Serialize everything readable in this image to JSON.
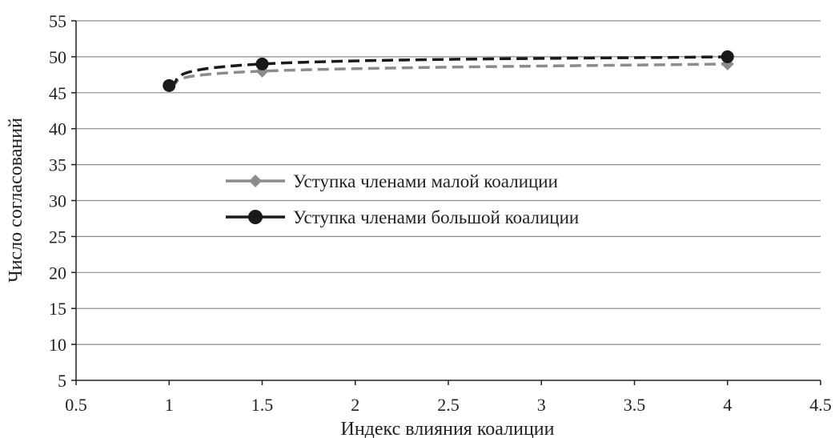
{
  "chart_data": {
    "type": "line",
    "xlabel": "Индекс влияния коалиции",
    "ylabel": "Число согласований",
    "xlim": [
      0.5,
      4.5
    ],
    "ylim": [
      5,
      55
    ],
    "xticks": [
      0.5,
      1,
      1.5,
      2,
      2.5,
      3,
      3.5,
      4,
      4.5
    ],
    "yticks": [
      5,
      10,
      15,
      20,
      25,
      30,
      35,
      40,
      45,
      50,
      55
    ],
    "grid": "horizontal",
    "legend_position": "center-left",
    "series": [
      {
        "name": "Уступка членами малой коалиции",
        "x": [
          1,
          1.5,
          4
        ],
        "values": [
          46,
          48,
          49
        ],
        "color": "#8c8c8c",
        "marker": "diamond",
        "line_style": "dashed"
      },
      {
        "name": "Уступка членами большой коалиции",
        "x": [
          1,
          1.5,
          4
        ],
        "values": [
          46,
          49,
          50
        ],
        "color": "#1a1a1a",
        "marker": "circle",
        "line_style": "dashed"
      }
    ]
  }
}
